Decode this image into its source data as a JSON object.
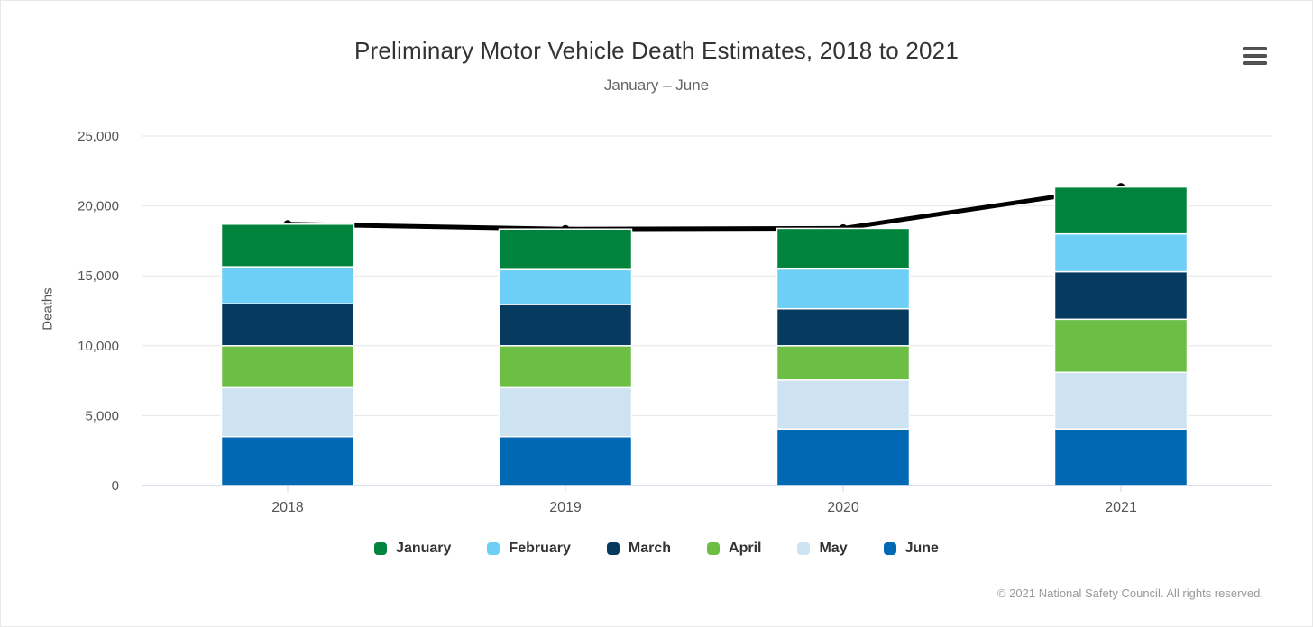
{
  "chart_data": {
    "type": "bar",
    "stacked": true,
    "title": "Preliminary Motor Vehicle Death Estimates, 2018 to 2021",
    "subtitle": "January – June",
    "ylabel": "Deaths",
    "xlabel": "",
    "ylim": [
      0,
      25000
    ],
    "ytick_interval": 5000,
    "yticks": [
      {
        "value": 0,
        "label": "0"
      },
      {
        "value": 5000,
        "label": "5,000"
      },
      {
        "value": 10000,
        "label": "10,000"
      },
      {
        "value": 15000,
        "label": "15,000"
      },
      {
        "value": 20000,
        "label": "20,000"
      },
      {
        "value": 25000,
        "label": "25,000"
      }
    ],
    "categories": [
      "2018",
      "2019",
      "2020",
      "2021"
    ],
    "stack_order": "bottom-to-top: June, May, April, March, February, January",
    "series": [
      {
        "name": "January",
        "color": "#00843D",
        "values": [
          3050,
          2900,
          2900,
          3350
        ]
      },
      {
        "name": "February",
        "color": "#6DCFF6",
        "values": [
          2650,
          2500,
          2850,
          2700
        ]
      },
      {
        "name": "March",
        "color": "#063A5E",
        "values": [
          3000,
          2950,
          2650,
          3400
        ]
      },
      {
        "name": "April",
        "color": "#6CBE45",
        "values": [
          3000,
          3000,
          2450,
          3800
        ]
      },
      {
        "name": "May",
        "color": "#CEE3F2",
        "values": [
          3500,
          3500,
          3500,
          4050
        ]
      },
      {
        "name": "June",
        "color": "#0169B3",
        "values": [
          3500,
          3500,
          4050,
          4050
        ]
      }
    ],
    "totals_line": {
      "name": "Total",
      "color": "#000000",
      "values": [
        18700,
        18350,
        18400,
        21350
      ]
    },
    "grid": true,
    "legend_position": "bottom",
    "credit": "© 2021 National Safety Council. All rights reserved."
  },
  "colors": {
    "grid": "#E6E6E6",
    "axis": "#CCD6EB",
    "axis_label_text": "#555555",
    "menu_icon": "#555555"
  },
  "icons": {
    "context_menu": "hamburger-icon"
  }
}
